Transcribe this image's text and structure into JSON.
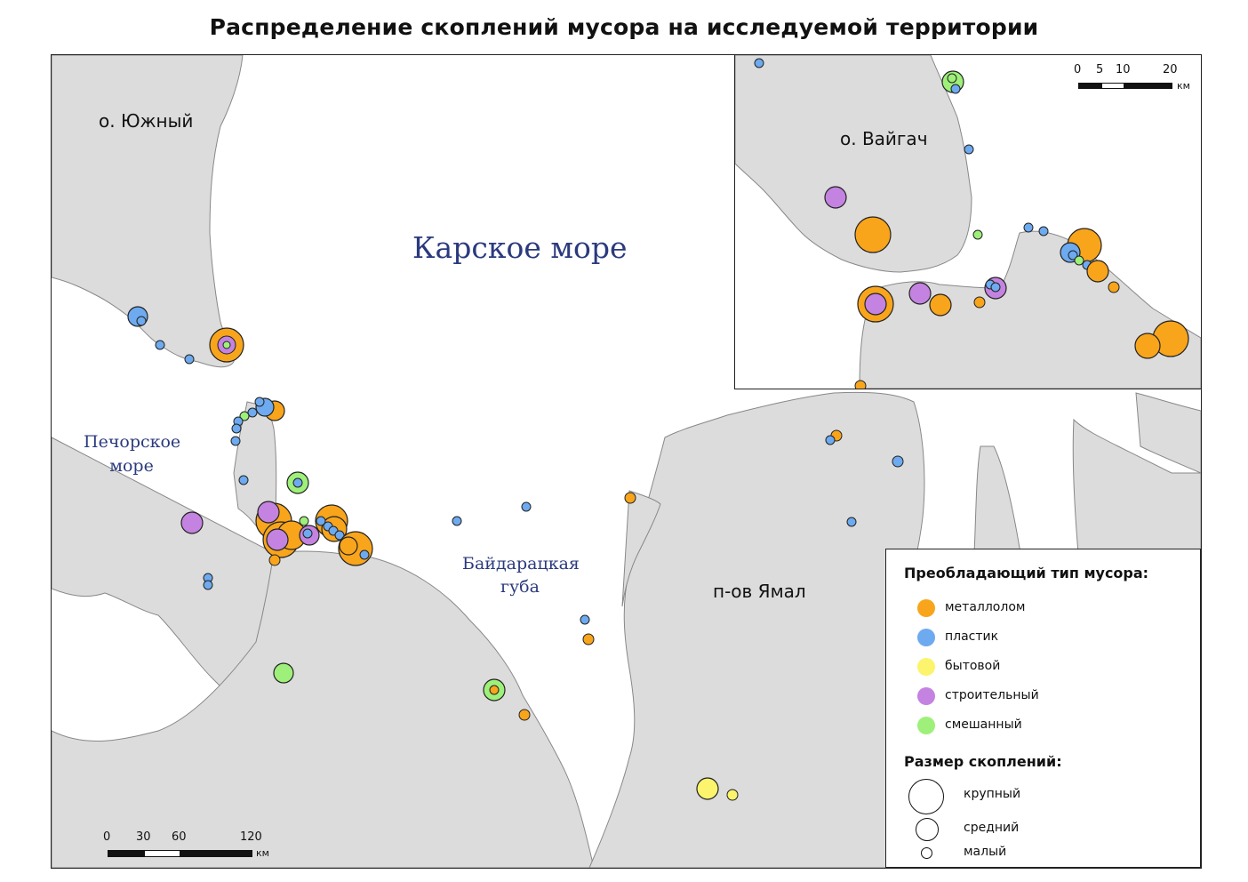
{
  "title": "Распределение скоплений мусора на исследуемой территории",
  "labels": {
    "island_south": "о. Южный",
    "kara_sea": "Карское море",
    "pechora_sea_line1": "Печорское",
    "pechora_sea_line2": "море",
    "baydaratskaya_line1": "Байдарацкая",
    "baydaratskaya_line2": "губа",
    "yamal": "п-ов Ямал",
    "vaygach": "о. Вайгач"
  },
  "colors": {
    "water": "#ffffff",
    "land": "#dcdcdc",
    "coast": "#888888",
    "metal": "#f8a51c",
    "plastic": "#6eaaf0",
    "household": "#fbf46c",
    "construction": "#c483e0",
    "mixed": "#9ef07a"
  },
  "legend": {
    "type_heading": "Преобладающий тип мусора:",
    "types": [
      {
        "label": "металлолом",
        "color": "#f8a51c"
      },
      {
        "label": "пластик",
        "color": "#6eaaf0"
      },
      {
        "label": "бытовой",
        "color": "#fbf46c"
      },
      {
        "label": "строительный",
        "color": "#c483e0"
      },
      {
        "label": "смешанный",
        "color": "#9ef07a"
      }
    ],
    "size_heading": "Размер скоплений:",
    "sizes": [
      {
        "label": "крупный"
      },
      {
        "label": "средний"
      },
      {
        "label": "малый"
      }
    ]
  },
  "scale_main": {
    "ticks": [
      "0",
      "30",
      "60",
      "120"
    ],
    "unit": "км"
  },
  "scale_inset": {
    "ticks": [
      "0",
      "5",
      "10",
      "20"
    ],
    "unit": "км"
  }
}
